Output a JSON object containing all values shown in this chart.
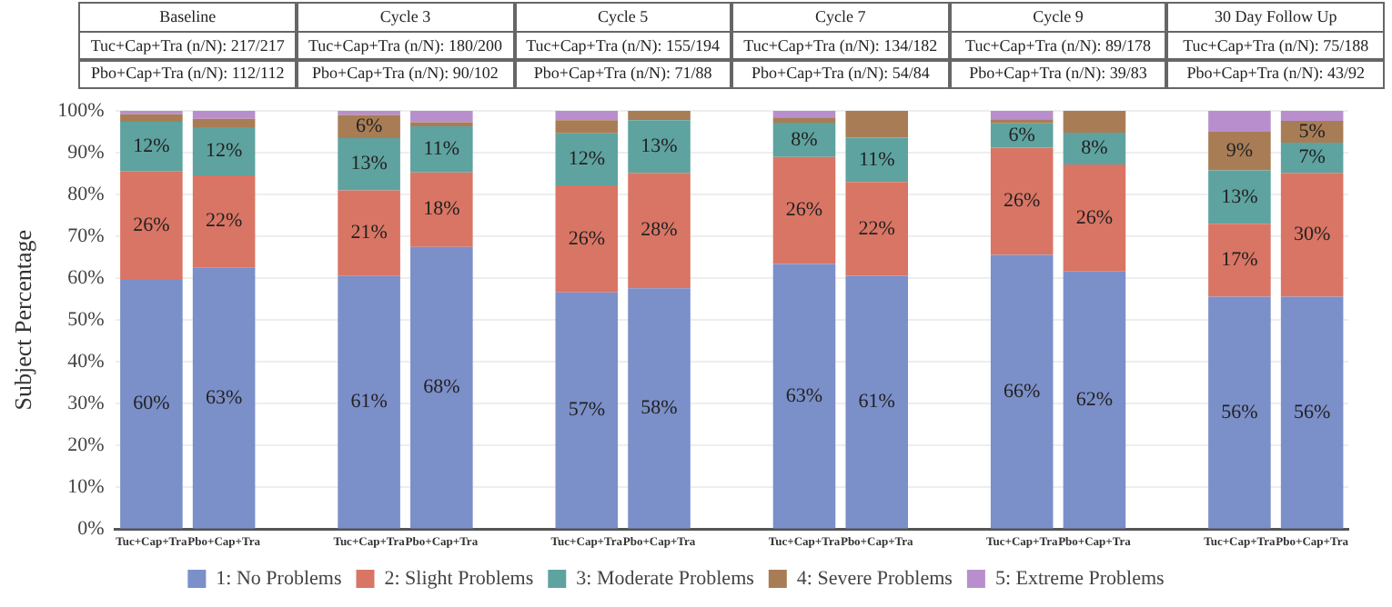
{
  "chart_data": {
    "type": "bar",
    "stacked": true,
    "ylabel": "Subject Percentage",
    "categories": [
      "Tuc+Cap+Tra",
      "Pbo+Cap+Tra",
      null,
      "Tuc+Cap+Tra",
      "Pbo+Cap+Tra",
      null,
      "Tuc+Cap+Tra",
      "Pbo+Cap+Tra",
      null,
      "Tuc+Cap+Tra",
      "Pbo+Cap+Tra",
      null,
      "Tuc+Cap+Tra",
      "Pbo+Cap+Tra",
      null,
      "Tuc+Cap+Tra",
      "Pbo+Cap+Tra"
    ],
    "series": [
      {
        "name": "1: No Problems",
        "color": "#7b8fc9",
        "values": [
          59.6,
          62.6,
          null,
          60.5,
          67.5,
          null,
          56.6,
          57.6,
          null,
          63.4,
          60.6,
          null,
          65.6,
          61.6,
          null,
          55.6,
          55.6
        ],
        "value_labels": [
          "60%",
          "63%",
          null,
          "61%",
          "68%",
          null,
          "57%",
          "58%",
          null,
          "63%",
          "61%",
          null,
          "66%",
          "62%",
          null,
          "56%",
          "56%"
        ]
      },
      {
        "name": "2: Slight Problems",
        "color": "#d97564",
        "values": [
          26,
          22,
          null,
          20.5,
          17.8,
          null,
          25.6,
          27.6,
          null,
          25.6,
          22.4,
          null,
          25.6,
          25.6,
          null,
          17.4,
          29.6
        ],
        "value_labels": [
          "26%",
          "22%",
          null,
          "21%",
          "18%",
          null,
          "26%",
          "28%",
          null,
          "26%",
          "22%",
          null,
          "26%",
          "26%",
          null,
          "17%",
          "30%"
        ]
      },
      {
        "name": "3: Moderate Problems",
        "color": "#5ea3a0",
        "values": [
          11.8,
          11.5,
          null,
          12.5,
          11,
          null,
          12.4,
          12.6,
          null,
          8.2,
          10.6,
          null,
          5.8,
          7.6,
          null,
          12.8,
          7.2
        ],
        "value_labels": [
          "12%",
          "12%",
          null,
          "13%",
          "11%",
          null,
          "12%",
          "13%",
          null,
          "8%",
          "11%",
          null,
          "6%",
          "8%",
          null,
          "13%",
          "7%"
        ]
      },
      {
        "name": "4: Severe Problems",
        "color": "#a87d56",
        "values": [
          1.8,
          2,
          null,
          5.5,
          1,
          null,
          3.2,
          2.2,
          null,
          1.2,
          6.4,
          null,
          1,
          5.2,
          null,
          9.2,
          5.2
        ],
        "value_labels": [
          null,
          null,
          null,
          "6%",
          null,
          null,
          null,
          null,
          null,
          null,
          null,
          null,
          null,
          null,
          null,
          "9%",
          "5%"
        ]
      },
      {
        "name": "5: Extreme Problems",
        "color": "#b88fcc",
        "values": [
          0.8,
          1.9,
          null,
          1,
          2.7,
          null,
          2.2,
          0,
          null,
          1.6,
          0,
          null,
          2,
          0,
          null,
          5,
          2.4
        ],
        "value_labels": [
          null,
          null,
          null,
          null,
          null,
          null,
          null,
          null,
          null,
          null,
          null,
          null,
          null,
          null,
          null,
          null,
          null
        ]
      }
    ],
    "ylim": [
      0,
      100
    ],
    "yticks": [
      {
        "value": 0,
        "label": "0%"
      },
      {
        "value": 10,
        "label": "10%"
      },
      {
        "value": 20,
        "label": "20%"
      },
      {
        "value": 30,
        "label": "30%"
      },
      {
        "value": 40,
        "label": "40%"
      },
      {
        "value": 50,
        "label": "50%"
      },
      {
        "value": 60,
        "label": "60%"
      },
      {
        "value": 70,
        "label": "70%"
      },
      {
        "value": 80,
        "label": "80%"
      },
      {
        "value": 90,
        "label": "90%"
      },
      {
        "value": 100,
        "label": "100%"
      }
    ],
    "grid": "y",
    "legend": "bottom",
    "annotations": [
      "Baseline",
      "Cycle 3",
      "Cycle 5",
      "Cycle 7",
      "Cycle 9",
      "30 Day Follow Up",
      "Tuc+Cap+Tra (n/N): 217/217",
      "Tuc+Cap+Tra (n/N): 180/200",
      "Tuc+Cap+Tra (n/N): 155/194",
      "Tuc+Cap+Tra (n/N): 134/182",
      "Tuc+Cap+Tra (n/N): 89/178",
      "Tuc+Cap+Tra (n/N): 75/188",
      "Pbo+Cap+Tra (n/N): 112/112",
      "Pbo+Cap+Tra (n/N): 90/102",
      "Pbo+Cap+Tra (n/N): 71/88",
      "Pbo+Cap+Tra (n/N): 54/84",
      "Pbo+Cap+Tra (n/N): 39/83",
      "Pbo+Cap+Tra (n/N): 43/92"
    ]
  }
}
